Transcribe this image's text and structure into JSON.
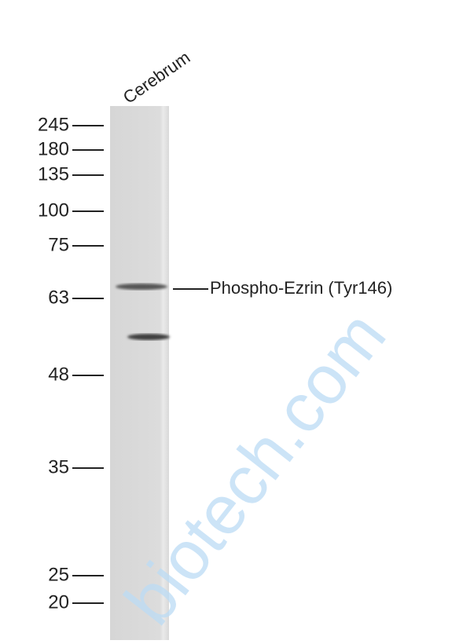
{
  "lane_label": "Cerebrum",
  "markers": [
    "245",
    "180",
    "135",
    "100",
    "75",
    "63",
    "48",
    "35",
    "25",
    "20"
  ],
  "band_label": "Phospho-Ezrin (Tyr146)",
  "watermark": "biotech.com"
}
